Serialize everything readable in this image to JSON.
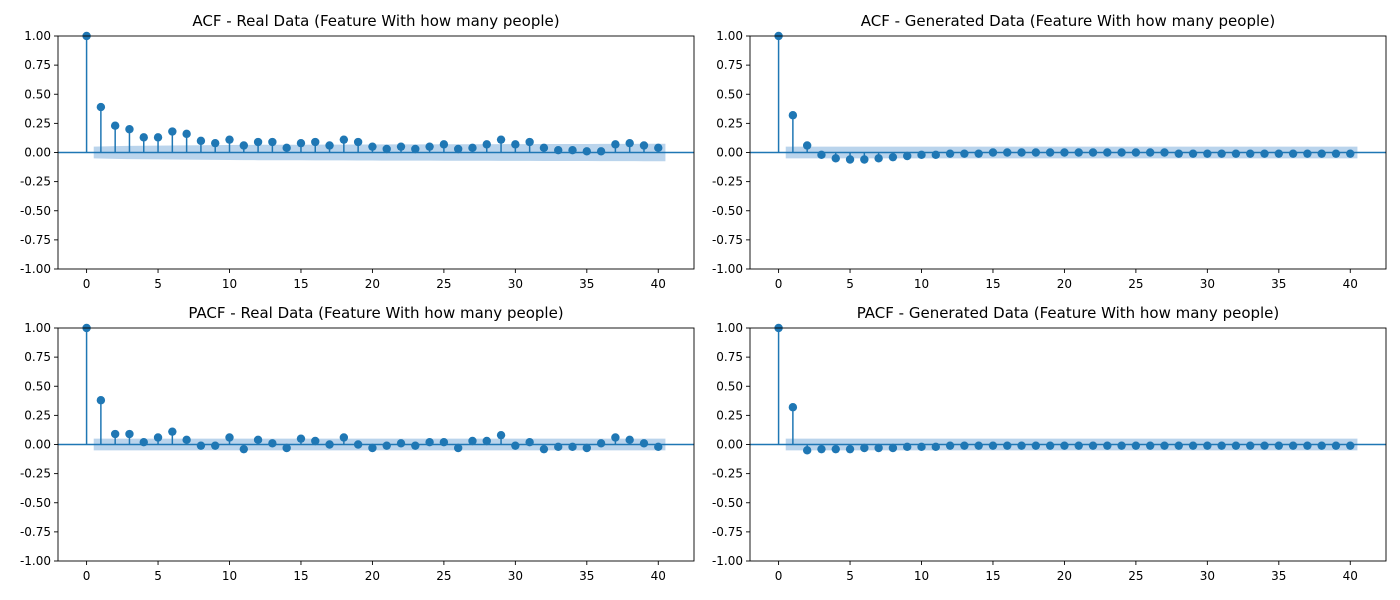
{
  "chart_data": [
    {
      "type": "stem",
      "title": "ACF - Real Data (Feature With how many people)",
      "xlim": [
        -2,
        42.5
      ],
      "ylim": [
        -1.0,
        1.0
      ],
      "xticks": [
        0,
        5,
        10,
        15,
        20,
        25,
        30,
        35,
        40
      ],
      "yticks": [
        "-1.00",
        "-0.75",
        "-0.50",
        "-0.25",
        "0.00",
        "0.25",
        "0.50",
        "0.75",
        "1.00"
      ],
      "series_color": "#1f77b4",
      "band_color": "#aecde9",
      "lags": [
        0,
        1,
        2,
        3,
        4,
        5,
        6,
        7,
        8,
        9,
        10,
        11,
        12,
        13,
        14,
        15,
        16,
        17,
        18,
        19,
        20,
        21,
        22,
        23,
        24,
        25,
        26,
        27,
        28,
        29,
        30,
        31,
        32,
        33,
        34,
        35,
        36,
        37,
        38,
        39,
        40
      ],
      "values": [
        1.0,
        0.39,
        0.23,
        0.2,
        0.13,
        0.13,
        0.18,
        0.16,
        0.1,
        0.08,
        0.11,
        0.06,
        0.09,
        0.09,
        0.04,
        0.08,
        0.09,
        0.06,
        0.11,
        0.09,
        0.05,
        0.03,
        0.05,
        0.03,
        0.05,
        0.07,
        0.03,
        0.04,
        0.07,
        0.11,
        0.07,
        0.09,
        0.04,
        0.02,
        0.02,
        0.01,
        0.01,
        0.07,
        0.08,
        0.06,
        0.04
      ],
      "conf_band": [
        0.03,
        0.05,
        0.055,
        0.057,
        0.058,
        0.059,
        0.06,
        0.061,
        0.062,
        0.063,
        0.064,
        0.065,
        0.066,
        0.066,
        0.067,
        0.067,
        0.068,
        0.068,
        0.068,
        0.069,
        0.069,
        0.07,
        0.07,
        0.07,
        0.07,
        0.071,
        0.071,
        0.071,
        0.071,
        0.072,
        0.072,
        0.072,
        0.073,
        0.073,
        0.073,
        0.073,
        0.074,
        0.074,
        0.074,
        0.075,
        0.075
      ]
    },
    {
      "type": "stem",
      "title": "ACF - Generated Data (Feature With how many people)",
      "xlim": [
        -2,
        42.5
      ],
      "ylim": [
        -1.0,
        1.0
      ],
      "xticks": [
        0,
        5,
        10,
        15,
        20,
        25,
        30,
        35,
        40
      ],
      "yticks": [
        "-1.00",
        "-0.75",
        "-0.50",
        "-0.25",
        "0.00",
        "0.25",
        "0.50",
        "0.75",
        "1.00"
      ],
      "series_color": "#1f77b4",
      "band_color": "#aecde9",
      "lags": [
        0,
        1,
        2,
        3,
        4,
        5,
        6,
        7,
        8,
        9,
        10,
        11,
        12,
        13,
        14,
        15,
        16,
        17,
        18,
        19,
        20,
        21,
        22,
        23,
        24,
        25,
        26,
        27,
        28,
        29,
        30,
        31,
        32,
        33,
        34,
        35,
        36,
        37,
        38,
        39,
        40
      ],
      "values": [
        1.0,
        0.32,
        0.06,
        -0.02,
        -0.05,
        -0.06,
        -0.06,
        -0.05,
        -0.04,
        -0.03,
        -0.02,
        -0.02,
        -0.01,
        -0.01,
        -0.01,
        0.0,
        0.0,
        0.0,
        0.0,
        0.0,
        0.0,
        0.0,
        0.0,
        0.0,
        0.0,
        0.0,
        0.0,
        0.0,
        -0.01,
        -0.01,
        -0.01,
        -0.01,
        -0.01,
        -0.01,
        -0.01,
        -0.01,
        -0.01,
        -0.01,
        -0.01,
        -0.01,
        -0.01
      ],
      "conf_band": [
        0.03,
        0.05,
        0.05,
        0.05,
        0.05,
        0.05,
        0.05,
        0.05,
        0.05,
        0.05,
        0.05,
        0.05,
        0.05,
        0.05,
        0.05,
        0.05,
        0.05,
        0.05,
        0.05,
        0.05,
        0.05,
        0.05,
        0.05,
        0.05,
        0.05,
        0.05,
        0.05,
        0.05,
        0.05,
        0.05,
        0.05,
        0.05,
        0.05,
        0.05,
        0.05,
        0.05,
        0.05,
        0.05,
        0.05,
        0.05,
        0.05
      ]
    },
    {
      "type": "stem",
      "title": "PACF - Real Data (Feature With how many people)",
      "xlim": [
        -2,
        42.5
      ],
      "ylim": [
        -1.0,
        1.0
      ],
      "xticks": [
        0,
        5,
        10,
        15,
        20,
        25,
        30,
        35,
        40
      ],
      "yticks": [
        "-1.00",
        "-0.75",
        "-0.50",
        "-0.25",
        "0.00",
        "0.25",
        "0.50",
        "0.75",
        "1.00"
      ],
      "series_color": "#1f77b4",
      "band_color": "#aecde9",
      "lags": [
        0,
        1,
        2,
        3,
        4,
        5,
        6,
        7,
        8,
        9,
        10,
        11,
        12,
        13,
        14,
        15,
        16,
        17,
        18,
        19,
        20,
        21,
        22,
        23,
        24,
        25,
        26,
        27,
        28,
        29,
        30,
        31,
        32,
        33,
        34,
        35,
        36,
        37,
        38,
        39,
        40
      ],
      "values": [
        1.0,
        0.38,
        0.09,
        0.09,
        0.02,
        0.06,
        0.11,
        0.04,
        -0.01,
        -0.01,
        0.06,
        -0.04,
        0.04,
        0.01,
        -0.03,
        0.05,
        0.03,
        0.0,
        0.06,
        0.0,
        -0.03,
        -0.01,
        0.01,
        -0.01,
        0.02,
        0.02,
        -0.03,
        0.03,
        0.03,
        0.08,
        -0.01,
        0.02,
        -0.04,
        -0.02,
        -0.02,
        -0.03,
        0.01,
        0.06,
        0.04,
        0.01,
        -0.02
      ],
      "conf_band": [
        0.03,
        0.05,
        0.05,
        0.05,
        0.05,
        0.05,
        0.05,
        0.05,
        0.05,
        0.05,
        0.05,
        0.05,
        0.05,
        0.05,
        0.05,
        0.05,
        0.05,
        0.05,
        0.05,
        0.05,
        0.05,
        0.05,
        0.05,
        0.05,
        0.05,
        0.05,
        0.05,
        0.05,
        0.05,
        0.05,
        0.05,
        0.05,
        0.05,
        0.05,
        0.05,
        0.05,
        0.05,
        0.05,
        0.05,
        0.05,
        0.05
      ]
    },
    {
      "type": "stem",
      "title": "PACF - Generated Data (Feature With how many people)",
      "xlim": [
        -2,
        42.5
      ],
      "ylim": [
        -1.0,
        1.0
      ],
      "xticks": [
        0,
        5,
        10,
        15,
        20,
        25,
        30,
        35,
        40
      ],
      "yticks": [
        "-1.00",
        "-0.75",
        "-0.50",
        "-0.25",
        "0.00",
        "0.25",
        "0.50",
        "0.75",
        "1.00"
      ],
      "series_color": "#1f77b4",
      "band_color": "#aecde9",
      "lags": [
        0,
        1,
        2,
        3,
        4,
        5,
        6,
        7,
        8,
        9,
        10,
        11,
        12,
        13,
        14,
        15,
        16,
        17,
        18,
        19,
        20,
        21,
        22,
        23,
        24,
        25,
        26,
        27,
        28,
        29,
        30,
        31,
        32,
        33,
        34,
        35,
        36,
        37,
        38,
        39,
        40
      ],
      "values": [
        1.0,
        0.32,
        -0.05,
        -0.04,
        -0.04,
        -0.04,
        -0.03,
        -0.03,
        -0.03,
        -0.02,
        -0.02,
        -0.02,
        -0.01,
        -0.01,
        -0.01,
        -0.01,
        -0.01,
        -0.01,
        -0.01,
        -0.01,
        -0.01,
        -0.01,
        -0.01,
        -0.01,
        -0.01,
        -0.01,
        -0.01,
        -0.01,
        -0.01,
        -0.01,
        -0.01,
        -0.01,
        -0.01,
        -0.01,
        -0.01,
        -0.01,
        -0.01,
        -0.01,
        -0.01,
        -0.01,
        -0.01
      ],
      "conf_band": [
        0.03,
        0.05,
        0.05,
        0.05,
        0.05,
        0.05,
        0.05,
        0.05,
        0.05,
        0.05,
        0.05,
        0.05,
        0.05,
        0.05,
        0.05,
        0.05,
        0.05,
        0.05,
        0.05,
        0.05,
        0.05,
        0.05,
        0.05,
        0.05,
        0.05,
        0.05,
        0.05,
        0.05,
        0.05,
        0.05,
        0.05,
        0.05,
        0.05,
        0.05,
        0.05,
        0.05,
        0.05,
        0.05,
        0.05,
        0.05,
        0.05
      ]
    }
  ]
}
